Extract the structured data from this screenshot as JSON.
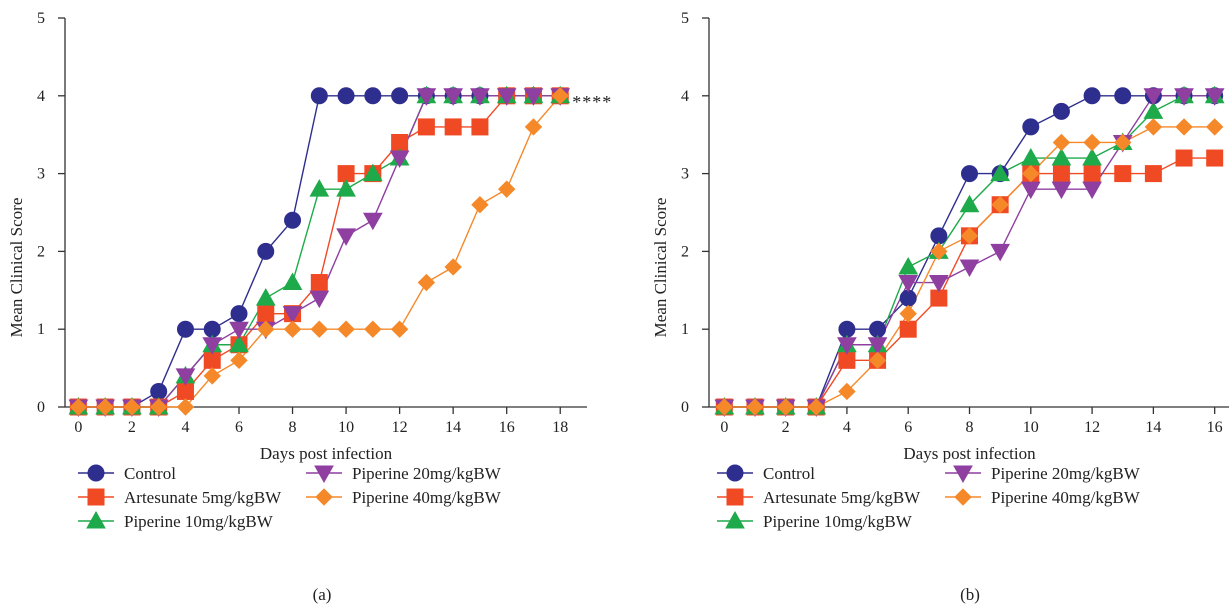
{
  "chart_data": [
    {
      "type": "line",
      "panel_label": "(a)",
      "xlabel": "Days post infection",
      "ylabel": "Mean Clinical Score",
      "xlim": [
        -0.5,
        19
      ],
      "ylim": [
        0,
        5
      ],
      "xticks": [
        0,
        2,
        4,
        6,
        8,
        10,
        12,
        14,
        16,
        18
      ],
      "yticks": [
        0,
        1,
        2,
        3,
        4,
        5
      ],
      "annotation": "****",
      "legend_position": "bottom",
      "series": [
        {
          "name": "Control",
          "color": "#2e2e8f",
          "marker": "circle",
          "x": [
            0,
            1,
            2,
            3,
            4,
            5,
            6,
            7,
            8,
            9,
            10,
            11,
            12,
            13,
            14,
            15,
            16,
            17,
            18
          ],
          "y": [
            0,
            0,
            0,
            0.2,
            1,
            1,
            1.2,
            2,
            2.4,
            4,
            4,
            4,
            4,
            4,
            4,
            4,
            4,
            4,
            4
          ]
        },
        {
          "name": "Artesunate 5mg/kgBW",
          "color": "#f04a24",
          "marker": "square",
          "x": [
            0,
            1,
            2,
            3,
            4,
            5,
            6,
            7,
            8,
            9,
            10,
            11,
            12,
            13,
            14,
            15,
            16,
            17,
            18
          ],
          "y": [
            0,
            0,
            0,
            0,
            0.2,
            0.6,
            0.8,
            1.2,
            1.2,
            1.6,
            3,
            3,
            3.4,
            3.6,
            3.6,
            3.6,
            4,
            4,
            4
          ]
        },
        {
          "name": "Piperine 10mg/kgBW",
          "color": "#1eaa4a",
          "marker": "triangle-up",
          "x": [
            0,
            1,
            2,
            3,
            4,
            5,
            6,
            7,
            8,
            9,
            10,
            11,
            12,
            13,
            14,
            15,
            16,
            17,
            18
          ],
          "y": [
            0,
            0,
            0,
            0,
            0.4,
            0.8,
            0.8,
            1.4,
            1.6,
            2.8,
            2.8,
            3,
            3.2,
            4,
            4,
            4,
            4,
            4,
            4
          ]
        },
        {
          "name": "Piperine 20mg/kgBW",
          "color": "#8e3fa0",
          "marker": "triangle-down",
          "x": [
            0,
            1,
            2,
            3,
            4,
            5,
            6,
            7,
            8,
            9,
            10,
            11,
            12,
            13,
            14,
            15,
            16,
            17,
            18
          ],
          "y": [
            0,
            0,
            0,
            0,
            0.4,
            0.8,
            1,
            1,
            1.2,
            1.4,
            2.2,
            2.4,
            3.2,
            4,
            4,
            4,
            4,
            4,
            4
          ]
        },
        {
          "name": "Piperine 40mg/kgBW",
          "color": "#f5892a",
          "marker": "diamond",
          "x": [
            0,
            1,
            2,
            3,
            4,
            5,
            6,
            7,
            8,
            9,
            10,
            11,
            12,
            13,
            14,
            15,
            16,
            17,
            18
          ],
          "y": [
            0,
            0,
            0,
            0,
            0,
            0.4,
            0.6,
            1,
            1,
            1,
            1,
            1,
            1,
            1.6,
            1.8,
            2.6,
            2.8,
            3.6,
            4
          ]
        }
      ]
    },
    {
      "type": "line",
      "panel_label": "(b)",
      "xlabel": "Days post infection",
      "ylabel": "Mean Clinical Score",
      "xlim": [
        -0.5,
        16.5
      ],
      "ylim": [
        0,
        5
      ],
      "xticks": [
        0,
        2,
        4,
        6,
        8,
        10,
        12,
        14,
        16
      ],
      "yticks": [
        0,
        1,
        2,
        3,
        4,
        5
      ],
      "annotation": "",
      "legend_position": "bottom",
      "series": [
        {
          "name": "Control",
          "color": "#2e2e8f",
          "marker": "circle",
          "x": [
            0,
            1,
            2,
            3,
            4,
            5,
            6,
            7,
            8,
            9,
            10,
            11,
            12,
            13,
            14,
            15,
            16
          ],
          "y": [
            0,
            0,
            0,
            0,
            1,
            1,
            1.4,
            2.2,
            3,
            3,
            3.6,
            3.8,
            4,
            4,
            4,
            4,
            4
          ]
        },
        {
          "name": "Artesunate 5mg/kgBW",
          "color": "#f04a24",
          "marker": "square",
          "x": [
            0,
            1,
            2,
            3,
            4,
            5,
            6,
            7,
            8,
            9,
            10,
            11,
            12,
            13,
            14,
            15,
            16
          ],
          "y": [
            0,
            0,
            0,
            0,
            0.6,
            0.6,
            1,
            1.4,
            2.2,
            2.6,
            3,
            3,
            3,
            3,
            3,
            3.2,
            3.2
          ]
        },
        {
          "name": "Piperine 10mg/kgBW",
          "color": "#1eaa4a",
          "marker": "triangle-up",
          "x": [
            0,
            1,
            2,
            3,
            4,
            5,
            6,
            7,
            8,
            9,
            10,
            11,
            12,
            13,
            14,
            15,
            16
          ],
          "y": [
            0,
            0,
            0,
            0,
            0.8,
            0.8,
            1.8,
            2,
            2.6,
            3,
            3.2,
            3.2,
            3.2,
            3.4,
            3.8,
            4,
            4
          ]
        },
        {
          "name": "Piperine 20mg/kgBW",
          "color": "#8e3fa0",
          "marker": "triangle-down",
          "x": [
            0,
            1,
            2,
            3,
            4,
            5,
            6,
            7,
            8,
            9,
            10,
            11,
            12,
            13,
            14,
            15,
            16
          ],
          "y": [
            0,
            0,
            0,
            0,
            0.8,
            0.8,
            1.6,
            1.6,
            1.8,
            2,
            2.8,
            2.8,
            2.8,
            3.4,
            4,
            4,
            4
          ]
        },
        {
          "name": "Piperine 40mg/kgBW",
          "color": "#f5892a",
          "marker": "diamond",
          "x": [
            0,
            1,
            2,
            3,
            4,
            5,
            6,
            7,
            8,
            9,
            10,
            11,
            12,
            13,
            14,
            15,
            16
          ],
          "y": [
            0,
            0,
            0,
            0,
            0.2,
            0.6,
            1.2,
            2,
            2.2,
            2.6,
            3,
            3.4,
            3.4,
            3.4,
            3.6,
            3.6,
            3.6
          ]
        }
      ]
    }
  ]
}
